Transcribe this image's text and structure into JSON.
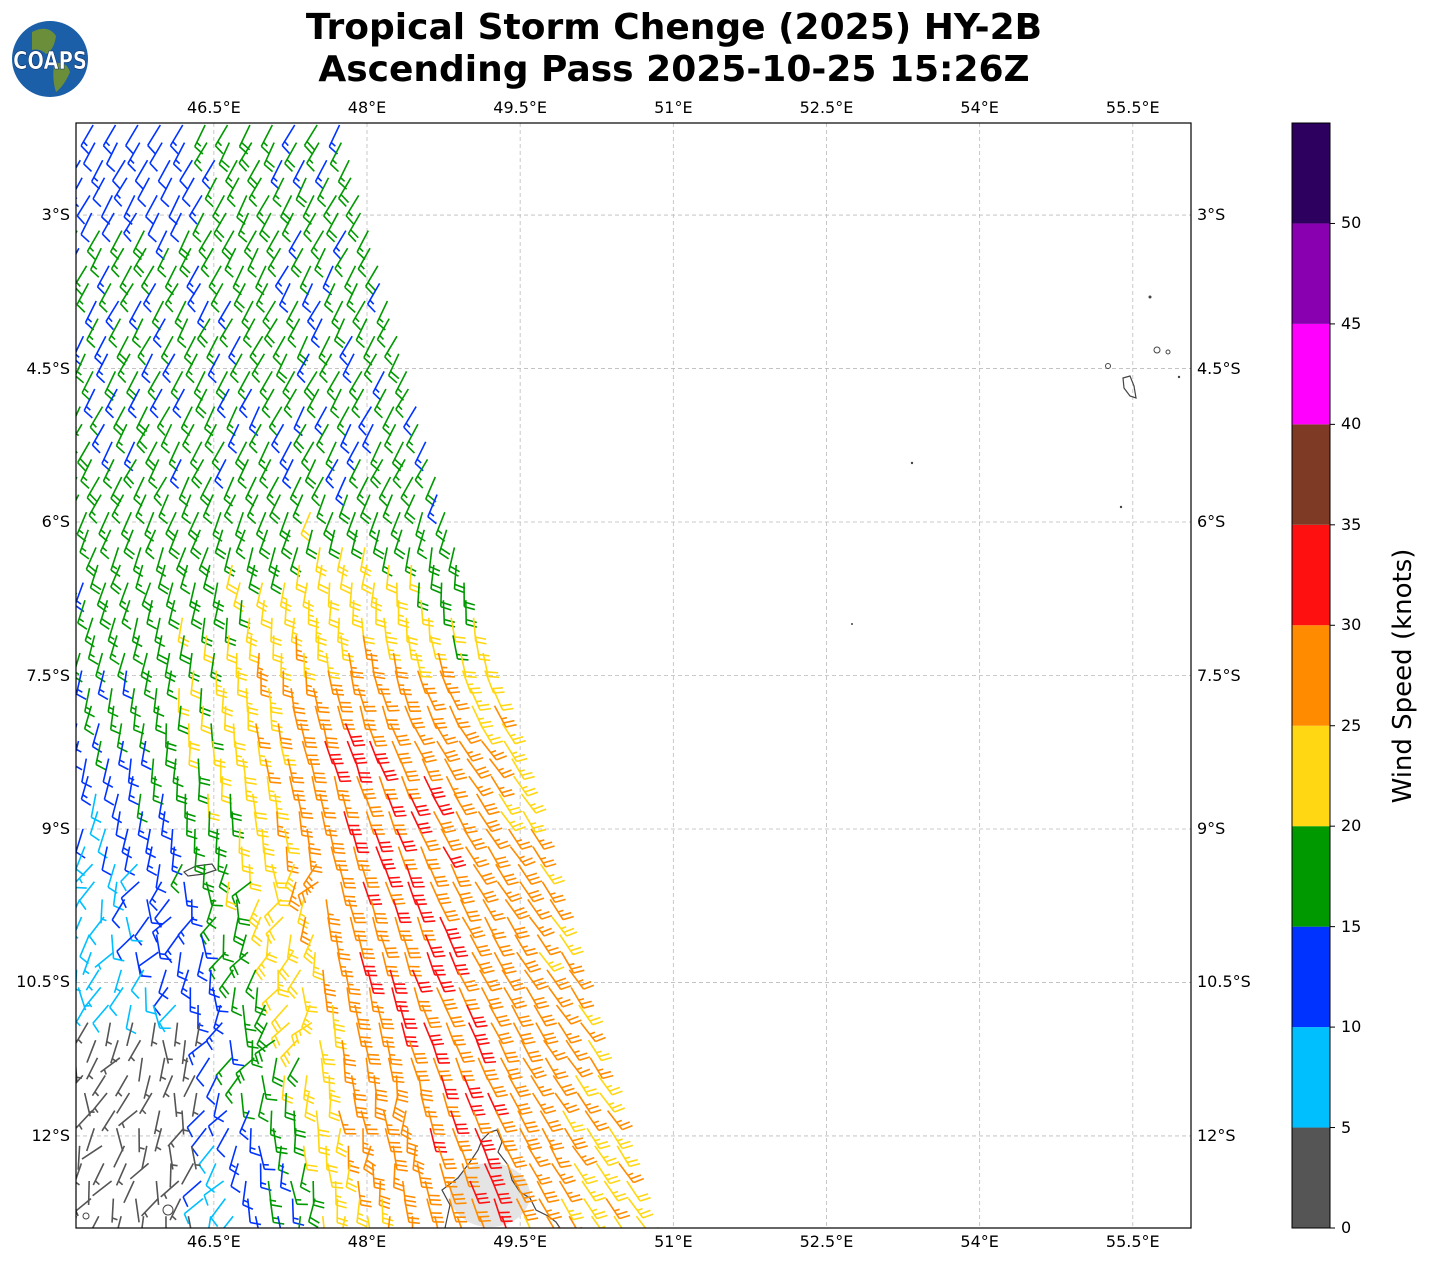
{
  "header": {
    "title_line1": "Tropical Storm Chenge (2025) HY-2B",
    "title_line2": "Ascending Pass 2025-10-25 15:26Z",
    "logo_text": "COAPS"
  },
  "map": {
    "lon_labels": [
      "46.5°E",
      "48°E",
      "49.5°E",
      "51°E",
      "52.5°E",
      "54°E",
      "55.5°E"
    ],
    "lat_labels": [
      "3°S",
      "4.5°S",
      "6°S",
      "7.5°S",
      "9°S",
      "10.5°S",
      "12°S"
    ],
    "lon_ticks": [
      46.5,
      48,
      49.5,
      51,
      52.5,
      54,
      55.5
    ],
    "lat_ticks": [
      -3,
      -4.5,
      -6,
      -7.5,
      -9,
      -10.5,
      -12
    ],
    "extent": {
      "lon": [
        45.15,
        56.07
      ],
      "lat": [
        -12.9,
        -2.1
      ]
    },
    "barb_units": "knots",
    "land_outline_color": "#444444"
  },
  "colorbar": {
    "label": "Wind Speed (knots)",
    "tick_labels": [
      "0",
      "5",
      "10",
      "15",
      "20",
      "25",
      "30",
      "35",
      "40",
      "45",
      "50"
    ],
    "bounds": [
      0,
      5,
      10,
      15,
      20,
      25,
      30,
      35,
      40,
      45,
      50,
      55
    ],
    "colors": [
      "#555555",
      "#00bfff",
      "#0033ff",
      "#009900",
      "#ffd712",
      "#ff8c00",
      "#ff1010",
      "#7f3a26",
      "#ff00ff",
      "#8800b0",
      "#2d0060"
    ]
  }
}
